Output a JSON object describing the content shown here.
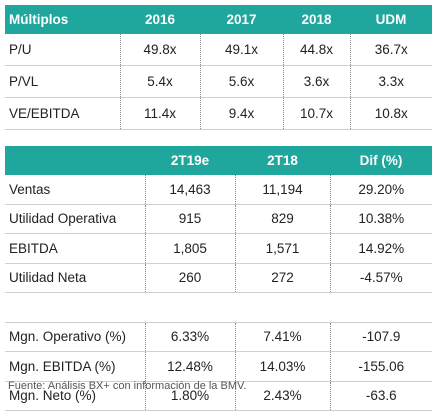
{
  "multiples_table": {
    "header": [
      "Múltiplos",
      "2016",
      "2017",
      "2018",
      "UDM"
    ],
    "rows": [
      [
        "P/U",
        "49.8x",
        "49.1x",
        "44.8x",
        "36.7x"
      ],
      [
        "P/VL",
        "5.4x",
        "5.6x",
        "3.6x",
        "3.3x"
      ],
      [
        "VE/EBITDA",
        "11.4x",
        "9.4x",
        "10.7x",
        "10.8x"
      ]
    ]
  },
  "results_table": {
    "header": [
      "2T19e",
      "2T18",
      "Dif (%)"
    ],
    "groups": [
      [
        [
          "Ventas",
          "14,463",
          "11,194",
          "29.20%"
        ],
        [
          "Utilidad Operativa",
          "915",
          "829",
          "10.38%"
        ],
        [
          "EBITDA",
          "1,805",
          "1,571",
          "14.92%"
        ],
        [
          "Utilidad Neta",
          "260",
          "272",
          "-4.57%"
        ]
      ],
      [
        [
          "Mgn. Operativo (%)",
          "6.33%",
          "7.41%",
          "-107.9"
        ],
        [
          "Mgn. EBITDA (%)",
          "12.48%",
          "14.03%",
          "-155.06"
        ],
        [
          "Mgn. Neto (%)",
          "1.80%",
          "2.43%",
          "-63.6"
        ]
      ]
    ]
  },
  "footer": "Fuente: Análisis BX+ con información de la BMV."
}
